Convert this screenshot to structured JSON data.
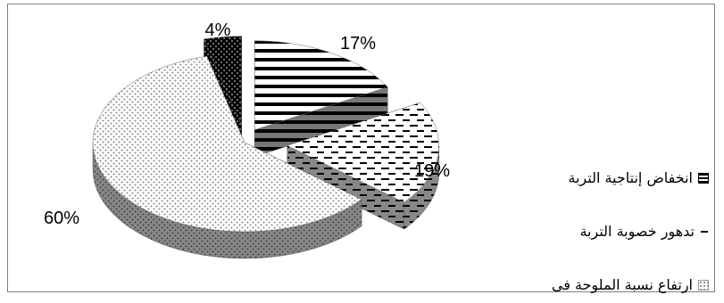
{
  "chart_data": {
    "type": "pie",
    "style": "3d-exploded",
    "title": "",
    "legend_position": "bottom-right",
    "series": [
      {
        "categories": [
          "انخفاض إنتاجية التربة",
          "تدهور خصوبة التربة",
          "ارتفاع نسبة الملوحة فى",
          ""
        ],
        "values": [
          17,
          19,
          60,
          4
        ],
        "labels": [
          "17%",
          "19%",
          "60%",
          "4%"
        ],
        "patterns": [
          "horizontal-stripes",
          "dashes",
          "dotted",
          "dark-dotted"
        ]
      }
    ]
  }
}
